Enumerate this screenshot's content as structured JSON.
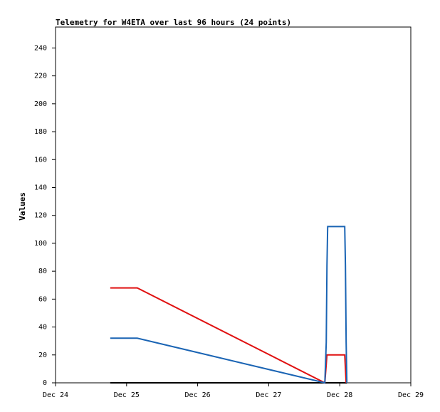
{
  "chart_data": {
    "type": "line",
    "title": "Telemetry for W4ETA over last 96 hours (24 points)",
    "y_label": "Values",
    "xlim": [
      24,
      29
    ],
    "xticks": [
      {
        "value": 24,
        "label": "Dec 24"
      },
      {
        "value": 25,
        "label": "Dec 25"
      },
      {
        "value": 26,
        "label": "Dec 26"
      },
      {
        "value": 27,
        "label": "Dec 27"
      },
      {
        "value": 28,
        "label": "Dec 28"
      },
      {
        "value": 29,
        "label": "Dec 29"
      }
    ],
    "ylim": [
      0,
      255
    ],
    "yticks": [
      0,
      20,
      40,
      60,
      80,
      100,
      120,
      140,
      160,
      180,
      200,
      220,
      240
    ],
    "series": [
      {
        "color": "#000000",
        "x": [
          24.77,
          28.1
        ],
        "values": [
          0,
          0
        ]
      },
      {
        "color": "#e01010",
        "x": [
          24.77,
          25.15,
          27.79,
          27.82,
          28.07,
          28.09
        ],
        "values": [
          68,
          68,
          0,
          20,
          20,
          0
        ]
      },
      {
        "color": "#1a64b4",
        "x": [
          24.77,
          25.15,
          27.79,
          27.81,
          27.82,
          27.83,
          28.07,
          28.08,
          28.09,
          28.1
        ],
        "values": [
          32,
          32,
          0,
          29,
          84,
          112,
          112,
          84,
          29,
          0
        ]
      }
    ]
  }
}
